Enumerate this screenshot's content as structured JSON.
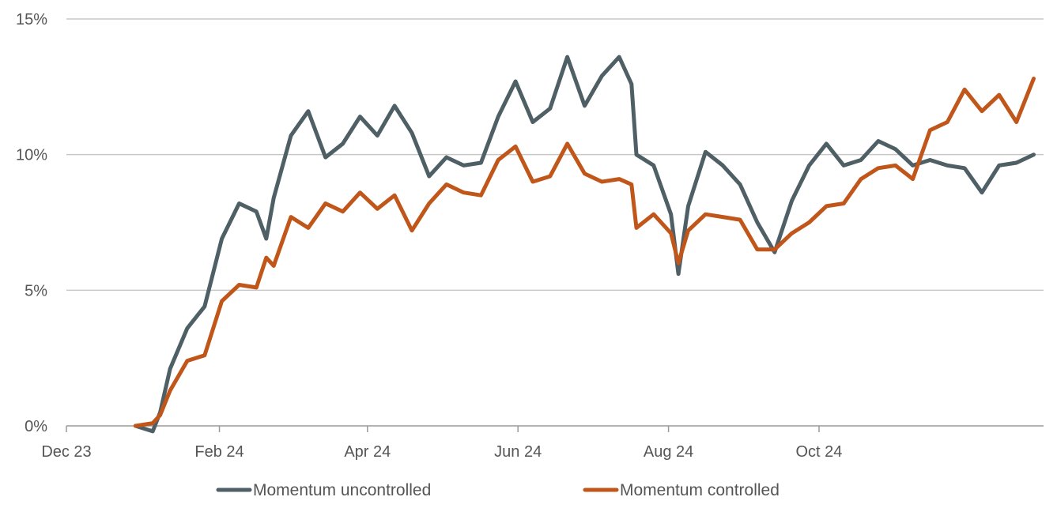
{
  "chart_data": {
    "type": "line",
    "title": "",
    "xlabel": "",
    "ylabel": "",
    "x_tick_labels": [
      "Dec 23",
      "Feb 24",
      "Apr 24",
      "Jun 24",
      "Aug 24",
      "Oct 24"
    ],
    "y_tick_labels": [
      "0%",
      "5%",
      "10%",
      "15%"
    ],
    "y_ticks": [
      0,
      5,
      10,
      15
    ],
    "ylim": [
      0,
      15
    ],
    "grid": "horizontal",
    "legend_position": "bottom-center",
    "series": [
      {
        "name": "Momentum uncontrolled",
        "color": "#4f5f66",
        "x": [
          "2023-12-29",
          "2024-01-05",
          "2024-01-08",
          "2024-01-12",
          "2024-01-19",
          "2024-01-26",
          "2024-02-02",
          "2024-02-09",
          "2024-02-16",
          "2024-02-20",
          "2024-02-23",
          "2024-03-01",
          "2024-03-08",
          "2024-03-15",
          "2024-03-22",
          "2024-03-29",
          "2024-04-05",
          "2024-04-12",
          "2024-04-19",
          "2024-04-26",
          "2024-05-03",
          "2024-05-10",
          "2024-05-17",
          "2024-05-24",
          "2024-05-31",
          "2024-06-07",
          "2024-06-14",
          "2024-06-21",
          "2024-06-28",
          "2024-07-05",
          "2024-07-12",
          "2024-07-17",
          "2024-07-19",
          "2024-07-26",
          "2024-08-02",
          "2024-08-05",
          "2024-08-09",
          "2024-08-16",
          "2024-08-23",
          "2024-08-30",
          "2024-09-06",
          "2024-09-13",
          "2024-09-20",
          "2024-09-27",
          "2024-10-04",
          "2024-10-11",
          "2024-10-18",
          "2024-10-25",
          "2024-11-01",
          "2024-11-08",
          "2024-11-15",
          "2024-11-22",
          "2024-11-29",
          "2024-12-06",
          "2024-12-13",
          "2024-12-20",
          "2024-12-27"
        ],
        "values": [
          0.0,
          -0.2,
          0.5,
          2.1,
          3.6,
          4.4,
          6.9,
          8.2,
          7.9,
          6.9,
          8.4,
          10.7,
          11.6,
          9.9,
          10.4,
          11.4,
          10.7,
          11.8,
          10.8,
          9.2,
          9.9,
          9.6,
          9.7,
          11.4,
          12.7,
          11.2,
          11.7,
          13.6,
          11.8,
          12.9,
          13.6,
          12.6,
          10.0,
          9.6,
          7.8,
          5.6,
          8.1,
          10.1,
          9.6,
          8.9,
          7.5,
          6.4,
          8.3,
          9.6,
          10.4,
          9.6,
          9.8,
          10.5,
          10.2,
          9.6,
          9.8,
          9.6,
          9.5,
          8.6,
          9.6,
          9.7,
          10.0
        ]
      },
      {
        "name": "Momentum controlled",
        "color": "#c0561a",
        "x": [
          "2023-12-29",
          "2024-01-05",
          "2024-01-08",
          "2024-01-12",
          "2024-01-19",
          "2024-01-26",
          "2024-02-02",
          "2024-02-09",
          "2024-02-16",
          "2024-02-20",
          "2024-02-23",
          "2024-03-01",
          "2024-03-08",
          "2024-03-15",
          "2024-03-22",
          "2024-03-29",
          "2024-04-05",
          "2024-04-12",
          "2024-04-19",
          "2024-04-26",
          "2024-05-03",
          "2024-05-10",
          "2024-05-17",
          "2024-05-24",
          "2024-05-31",
          "2024-06-07",
          "2024-06-14",
          "2024-06-21",
          "2024-06-28",
          "2024-07-05",
          "2024-07-12",
          "2024-07-17",
          "2024-07-19",
          "2024-07-26",
          "2024-08-02",
          "2024-08-05",
          "2024-08-09",
          "2024-08-16",
          "2024-08-23",
          "2024-08-30",
          "2024-09-06",
          "2024-09-13",
          "2024-09-20",
          "2024-09-27",
          "2024-10-04",
          "2024-10-11",
          "2024-10-18",
          "2024-10-25",
          "2024-11-01",
          "2024-11-08",
          "2024-11-15",
          "2024-11-22",
          "2024-11-29",
          "2024-12-06",
          "2024-12-13",
          "2024-12-20",
          "2024-12-27"
        ],
        "values": [
          0.0,
          0.1,
          0.4,
          1.3,
          2.4,
          2.6,
          4.6,
          5.2,
          5.1,
          6.2,
          5.9,
          7.7,
          7.3,
          8.2,
          7.9,
          8.6,
          8.0,
          8.5,
          7.2,
          8.2,
          8.9,
          8.6,
          8.5,
          9.8,
          10.3,
          9.0,
          9.2,
          10.4,
          9.3,
          9.0,
          9.1,
          8.9,
          7.3,
          7.8,
          7.1,
          6.0,
          7.2,
          7.8,
          7.7,
          7.6,
          6.5,
          6.5,
          7.1,
          7.5,
          8.1,
          8.2,
          9.1,
          9.5,
          9.6,
          9.1,
          10.9,
          11.2,
          12.4,
          11.6,
          12.2,
          11.2,
          12.8
        ]
      }
    ]
  }
}
